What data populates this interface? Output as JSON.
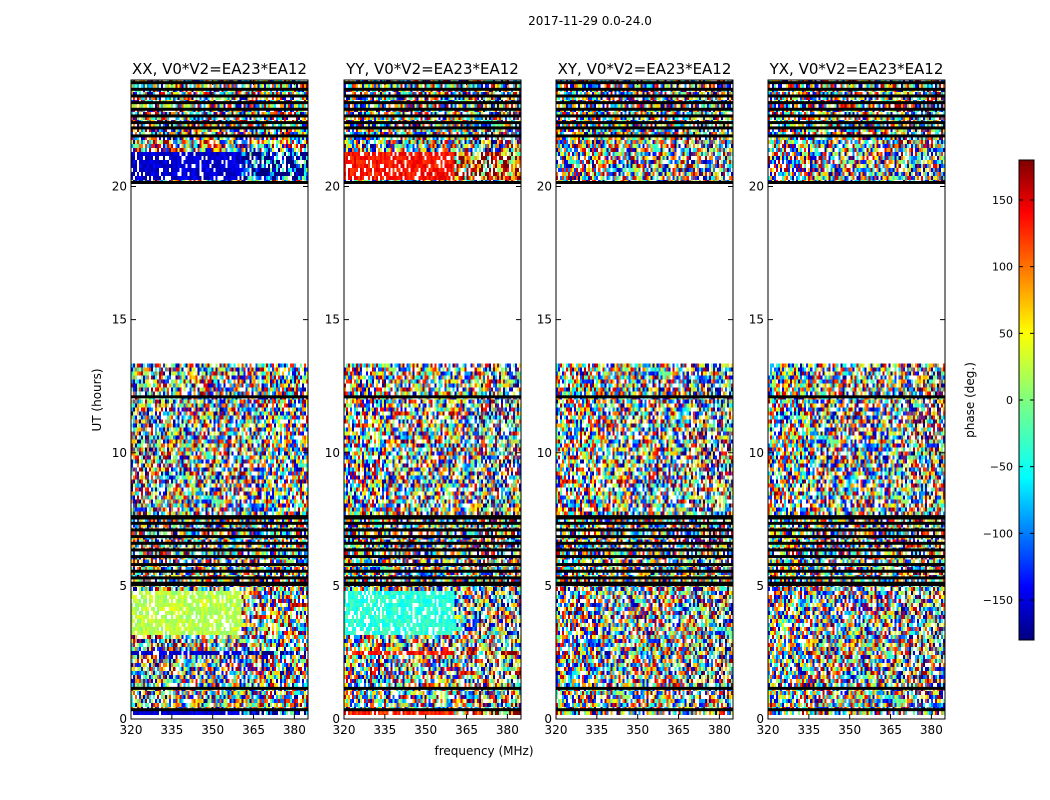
{
  "suptitle": "2017-11-29 0.0-24.0",
  "colors": {
    "white": "#ffffff",
    "black": "#000000"
  },
  "chart_data": {
    "type": "heatmap",
    "xlabel": "frequency (MHz)",
    "ylabel": "UT (hours)",
    "xlim": [
      320,
      385
    ],
    "ylim": [
      0,
      24
    ],
    "x_ticks": [
      "320",
      "335",
      "350",
      "365",
      "380"
    ],
    "y_ticks": [
      "0",
      "5",
      "10",
      "15",
      "20"
    ],
    "panels": [
      {
        "title": "XX, V0*V2=EA23*EA12",
        "dominant_phase_bands": [
          {
            "ut": [
              0.1,
              0.3
            ],
            "phase": -150
          },
          {
            "ut": [
              2.35,
              2.55
            ],
            "phase": -150
          },
          {
            "ut": [
              3.2,
              4.8
            ],
            "phase": 20
          },
          {
            "ut": [
              20.2,
              21.3
            ],
            "phase": -150
          }
        ]
      },
      {
        "title": "YY, V0*V2=EA23*EA12",
        "dominant_phase_bands": [
          {
            "ut": [
              0.1,
              0.3
            ],
            "phase": 120
          },
          {
            "ut": [
              2.35,
              2.55
            ],
            "phase": 130
          },
          {
            "ut": [
              3.2,
              4.8
            ],
            "phase": -30
          },
          {
            "ut": [
              20.2,
              21.3
            ],
            "phase": 130
          }
        ]
      },
      {
        "title": "XY, V0*V2=EA23*EA12",
        "dominant_phase_bands": []
      },
      {
        "title": "YX, V0*V2=EA23*EA12",
        "dominant_phase_bands": []
      }
    ],
    "masked_ut_ranges": [
      [
        0.0,
        0.08
      ],
      [
        13.4,
        20.1
      ]
    ],
    "black_line_ut": [
      0.35,
      1.15,
      5.05,
      5.1,
      5.3,
      5.55,
      5.8,
      6.1,
      6.35,
      6.6,
      6.85,
      7.1,
      7.35,
      7.55,
      7.6,
      12.1,
      20.15,
      21.9,
      22.2,
      22.4,
      22.65,
      22.9,
      23.15,
      23.4,
      23.65,
      23.9
    ],
    "colorbar": {
      "label": "phase (deg.)",
      "min": -180,
      "max": 180,
      "ticks": [
        "150",
        "100",
        "50",
        "0",
        "−50",
        "−100",
        "−150"
      ],
      "tick_values": [
        150,
        100,
        50,
        0,
        -50,
        -100,
        -150
      ],
      "colormap": "jet"
    }
  }
}
